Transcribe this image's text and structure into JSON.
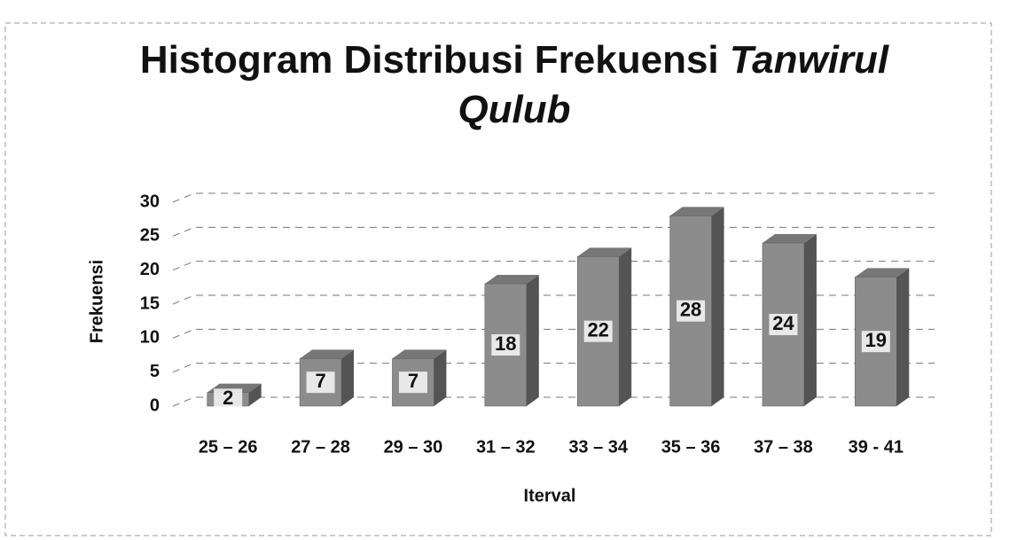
{
  "chart_data": {
    "type": "bar3d",
    "title": [
      "Histogram Distribusi Frekuensi",
      "Tanwirul Qulub"
    ],
    "x_label": "Iterval",
    "y_label": "Frekuensi",
    "categories": [
      "25 – 26",
      "27 – 28",
      "29 – 30",
      "31 – 32",
      "33 – 34",
      "35 – 36",
      "37 – 38",
      "39 - 41"
    ],
    "values": [
      2,
      7,
      7,
      18,
      22,
      28,
      24,
      19
    ],
    "color": "#8c8c8c",
    "ylim": [
      0,
      30
    ],
    "yticks": [
      0,
      5,
      10,
      15,
      20,
      25,
      30
    ],
    "grid": true
  }
}
